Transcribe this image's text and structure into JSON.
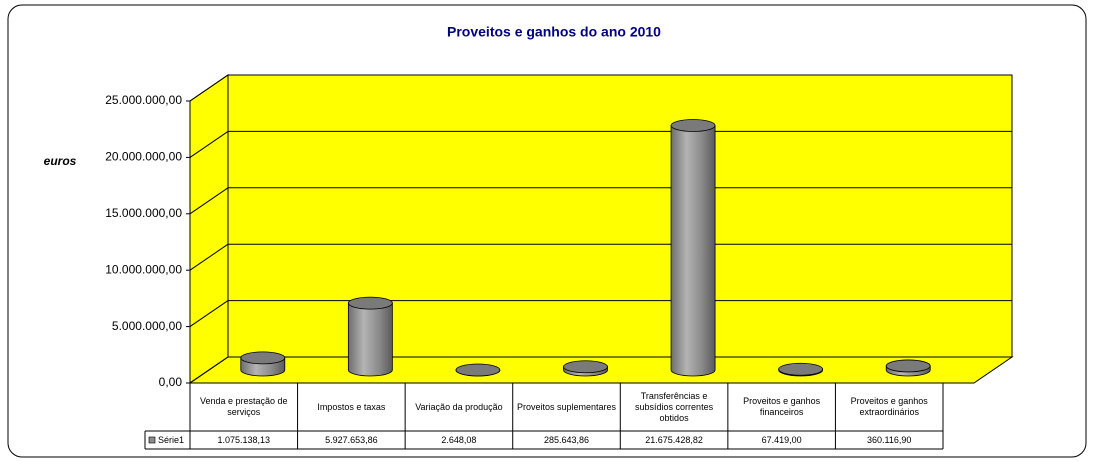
{
  "chart_data": {
    "type": "bar3d",
    "title": "Proveitos e ganhos do ano 2010",
    "y_label": "euros",
    "categories": [
      "Venda e prestação de serviços",
      "Impostos e taxas",
      "Variação da produção",
      "Proveitos suplementares",
      "Transferências e subsídios correntes obtidos",
      "Proveitos e ganhos financeiros",
      "Proveitos e ganhos extraordinários"
    ],
    "series": [
      {
        "name": "Série1",
        "color": "#8c8c8c",
        "values": [
          1075138.13,
          5927653.86,
          2648.08,
          285643.86,
          21675428.82,
          67419.0,
          360116.9
        ],
        "value_labels": [
          "1.075.138,13",
          "5.927.653,86",
          "2.648,08",
          "285.643,86",
          "21.675.428,82",
          "67.419,00",
          "360.116,90"
        ]
      }
    ],
    "ylim": [
      0,
      25000000
    ],
    "yticks": [
      {
        "value": 0,
        "label": "0,00"
      },
      {
        "value": 5000000,
        "label": "5.000.000,00"
      },
      {
        "value": 10000000,
        "label": "10.000.000,00"
      },
      {
        "value": 15000000,
        "label": "15.000.000,00"
      },
      {
        "value": 20000000,
        "label": "20.000.000,00"
      },
      {
        "value": 25000000,
        "label": "25.000.000,00"
      }
    ],
    "grid": true,
    "wall_color": "#ffff00"
  }
}
